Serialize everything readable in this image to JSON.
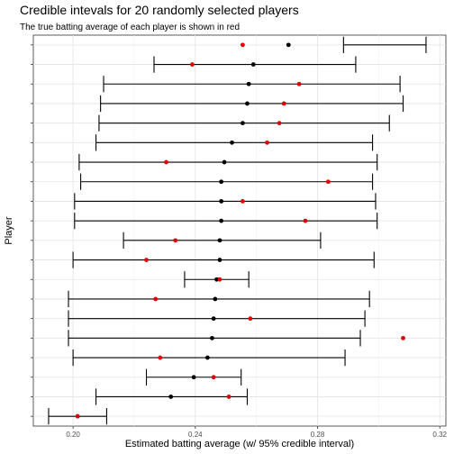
{
  "chart_data": {
    "type": "interval-dot",
    "title": "Credible intevals for 20 randomly selected players",
    "subtitle": "The true batting average of each player is shown in red",
    "xlabel": "Estimated batting average (w/ 95% credible interval)",
    "ylabel": "Player",
    "xlim": [
      0.187,
      0.322
    ],
    "x_ticks": [
      0.2,
      0.24,
      0.28,
      0.32
    ],
    "x_tick_labels": [
      "0.20",
      "0.24",
      "0.28",
      "0.32"
    ],
    "grid": true,
    "legend": "none",
    "series": [
      {
        "name": "estimate",
        "color": "#000000"
      },
      {
        "name": "true",
        "color": "#e00000"
      }
    ],
    "players": [
      {
        "low": 0.2885,
        "estimate": 0.2705,
        "high": 0.3155,
        "true": 0.2555
      },
      {
        "low": 0.2265,
        "estimate": 0.259,
        "high": 0.2925,
        "true": 0.239
      },
      {
        "low": 0.21,
        "estimate": 0.2575,
        "high": 0.307,
        "true": 0.274
      },
      {
        "low": 0.209,
        "estimate": 0.257,
        "high": 0.308,
        "true": 0.269
      },
      {
        "low": 0.2085,
        "estimate": 0.2555,
        "high": 0.3035,
        "true": 0.2675
      },
      {
        "low": 0.2075,
        "estimate": 0.252,
        "high": 0.298,
        "true": 0.2635
      },
      {
        "low": 0.202,
        "estimate": 0.2495,
        "high": 0.2995,
        "true": 0.2305
      },
      {
        "low": 0.2025,
        "estimate": 0.2485,
        "high": 0.298,
        "true": 0.2835
      },
      {
        "low": 0.2005,
        "estimate": 0.2485,
        "high": 0.299,
        "true": 0.2555
      },
      {
        "low": 0.2005,
        "estimate": 0.2485,
        "high": 0.2995,
        "true": 0.276
      },
      {
        "low": 0.2165,
        "estimate": 0.248,
        "high": 0.281,
        "true": 0.2335
      },
      {
        "low": 0.2,
        "estimate": 0.248,
        "high": 0.2985,
        "true": 0.224
      },
      {
        "low": 0.2365,
        "estimate": 0.247,
        "high": 0.2575,
        "true": 0.248
      },
      {
        "low": 0.1985,
        "estimate": 0.2465,
        "high": 0.297,
        "true": 0.227
      },
      {
        "low": 0.1985,
        "estimate": 0.246,
        "high": 0.2955,
        "true": 0.258
      },
      {
        "low": 0.1985,
        "estimate": 0.2455,
        "high": 0.294,
        "true": 0.308
      },
      {
        "low": 0.2,
        "estimate": 0.244,
        "high": 0.289,
        "true": 0.2285
      },
      {
        "low": 0.224,
        "estimate": 0.2395,
        "high": 0.255,
        "true": 0.246
      },
      {
        "low": 0.2075,
        "estimate": 0.232,
        "high": 0.257,
        "true": 0.251
      },
      {
        "low": 0.192,
        "estimate": 0.2015,
        "high": 0.211,
        "true": 0.2015
      }
    ]
  }
}
